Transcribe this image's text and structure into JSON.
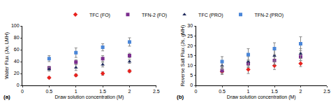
{
  "chart_data": [
    {
      "type": "scatter",
      "annotations": [
        "(a)"
      ],
      "x_label": "Draw solution concentration (M)",
      "y_label": "Water Flux (Jw, LMH)",
      "x": [
        0.5,
        1,
        1.5,
        2
      ],
      "xlim": [
        0,
        2.5
      ],
      "xticks": [
        0,
        0.5,
        1,
        1.5,
        2,
        2.5
      ],
      "ylim": [
        0,
        100
      ],
      "yticks": [
        0,
        20,
        40,
        60,
        80,
        100
      ],
      "grid": false,
      "legend": "top",
      "series": [
        {
          "name": "TFC (FO)",
          "color": "#e8221e",
          "marker": "diamond",
          "values": [
            13,
            17,
            20,
            24
          ],
          "errors": [
            1.5,
            2,
            3,
            2.5
          ]
        },
        {
          "name": "TFN-2 (FO)",
          "color": "#7b2d8e",
          "marker": "square",
          "values": [
            29,
            39,
            45,
            50
          ],
          "errors": [
            3,
            4,
            5,
            4
          ]
        },
        {
          "name": "TFC (PRO)",
          "color": "#1f2a5c",
          "marker": "triangle-up",
          "values": [
            27,
            30,
            35,
            40
          ],
          "errors": [
            3,
            5,
            4,
            3
          ]
        },
        {
          "name": "TFN-2 (PRO)",
          "color": "#4a86d8",
          "marker": "square",
          "values": [
            45,
            55,
            64,
            73
          ],
          "errors": [
            5,
            8,
            6,
            7
          ]
        }
      ]
    },
    {
      "type": "scatter",
      "annotations": [
        "(b)"
      ],
      "x_label": "Draw solution concentration (M)",
      "y_label": "Reverse Salt Flux (Js, gMH)",
      "x": [
        0.5,
        1,
        1.5,
        2
      ],
      "xlim": [
        0,
        2.5
      ],
      "xticks": [
        0,
        0.5,
        1,
        1.5,
        2,
        2.5
      ],
      "ylim": [
        0,
        30
      ],
      "yticks": [
        0,
        5,
        10,
        15,
        20,
        25,
        30
      ],
      "grid": false,
      "legend": "top",
      "series": [
        {
          "name": "TFC (FO)",
          "color": "#e8221e",
          "marker": "diamond",
          "values": [
            7,
            8,
            10,
            11
          ],
          "errors": [
            1.5,
            2,
            2,
            1.5
          ]
        },
        {
          "name": "TFN-2 (FO)",
          "color": "#7b2d8e",
          "marker": "square",
          "values": [
            7.5,
            11,
            12.5,
            14.5
          ],
          "errors": [
            1.5,
            2,
            2,
            2
          ]
        },
        {
          "name": "TFC (PRO)",
          "color": "#1f2a5c",
          "marker": "triangle-up",
          "values": [
            10,
            12,
            15,
            16
          ],
          "errors": [
            2,
            2.5,
            3,
            2.5
          ]
        },
        {
          "name": "TFN-2 (PRO)",
          "color": "#4a86d8",
          "marker": "square",
          "values": [
            12,
            15.5,
            18.5,
            21
          ],
          "errors": [
            2.5,
            3,
            3,
            3.5
          ]
        }
      ]
    }
  ]
}
